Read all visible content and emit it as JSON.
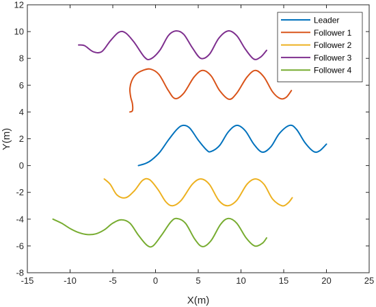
{
  "chart_data": {
    "type": "line",
    "title": "",
    "xlabel": "X(m)",
    "ylabel": "Y(m)",
    "xlim": [
      -15,
      25
    ],
    "ylim": [
      -8,
      12
    ],
    "xticks": [
      -15,
      -10,
      -5,
      0,
      5,
      10,
      15,
      20,
      25
    ],
    "yticks": [
      -8,
      -6,
      -4,
      -2,
      0,
      2,
      4,
      6,
      8,
      10,
      12
    ],
    "grid": false,
    "legend_position": "top-right",
    "series": [
      {
        "name": "Leader",
        "color": "#0072BD",
        "points": [
          [
            -2,
            0
          ],
          [
            -1.2,
            0.15
          ],
          [
            -0.5,
            0.4
          ],
          [
            0.5,
            1.0
          ],
          [
            1.5,
            1.9
          ],
          [
            2.5,
            2.7
          ],
          [
            3.2,
            3.0
          ],
          [
            4.0,
            2.8
          ],
          [
            5.0,
            1.9
          ],
          [
            6.0,
            1.15
          ],
          [
            6.5,
            1.05
          ],
          [
            7.5,
            1.5
          ],
          [
            8.5,
            2.5
          ],
          [
            9.5,
            3.0
          ],
          [
            10.5,
            2.6
          ],
          [
            11.5,
            1.6
          ],
          [
            12.5,
            1.0
          ],
          [
            13.5,
            1.4
          ],
          [
            14.5,
            2.4
          ],
          [
            15.7,
            3.0
          ],
          [
            16.5,
            2.7
          ],
          [
            17.5,
            1.7
          ],
          [
            18.5,
            1.05
          ],
          [
            19.2,
            1.1
          ],
          [
            20.0,
            1.6
          ]
        ]
      },
      {
        "name": "Follower 1",
        "color": "#D95319",
        "points": [
          [
            -3.0,
            4.0
          ],
          [
            -2.7,
            4.1
          ],
          [
            -2.7,
            4.6
          ],
          [
            -2.9,
            5.1
          ],
          [
            -3.0,
            5.7
          ],
          [
            -2.8,
            6.3
          ],
          [
            -2.3,
            6.8
          ],
          [
            -1.5,
            7.1
          ],
          [
            -0.6,
            7.2
          ],
          [
            0.4,
            6.8
          ],
          [
            1.5,
            5.6
          ],
          [
            2.3,
            5.0
          ],
          [
            3.3,
            5.4
          ],
          [
            4.5,
            6.6
          ],
          [
            5.5,
            7.1
          ],
          [
            6.5,
            6.7
          ],
          [
            7.5,
            5.6
          ],
          [
            8.6,
            4.95
          ],
          [
            9.5,
            5.4
          ],
          [
            10.7,
            6.6
          ],
          [
            11.7,
            7.1
          ],
          [
            12.7,
            6.6
          ],
          [
            13.7,
            5.5
          ],
          [
            14.6,
            5.0
          ],
          [
            15.3,
            5.1
          ],
          [
            15.9,
            5.6
          ]
        ]
      },
      {
        "name": "Follower 2",
        "color": "#EDB120",
        "points": [
          [
            -6.0,
            -1.0
          ],
          [
            -5.3,
            -1.4
          ],
          [
            -4.5,
            -2.2
          ],
          [
            -3.5,
            -2.4
          ],
          [
            -2.5,
            -1.9
          ],
          [
            -1.5,
            -1.1
          ],
          [
            -0.7,
            -1.05
          ],
          [
            0.3,
            -1.8
          ],
          [
            1.2,
            -2.7
          ],
          [
            2.0,
            -3.0
          ],
          [
            3.0,
            -2.6
          ],
          [
            4.3,
            -1.4
          ],
          [
            5.3,
            -1.0
          ],
          [
            6.3,
            -1.4
          ],
          [
            7.4,
            -2.6
          ],
          [
            8.4,
            -3.0
          ],
          [
            9.5,
            -2.6
          ],
          [
            10.7,
            -1.4
          ],
          [
            11.7,
            -1.0
          ],
          [
            12.7,
            -1.4
          ],
          [
            13.7,
            -2.5
          ],
          [
            14.8,
            -3.0
          ],
          [
            15.5,
            -2.8
          ],
          [
            16.0,
            -2.4
          ]
        ]
      },
      {
        "name": "Follower 3",
        "color": "#7E2F8E",
        "points": [
          [
            -9.0,
            9.0
          ],
          [
            -8.3,
            8.95
          ],
          [
            -7.3,
            8.5
          ],
          [
            -6.3,
            8.5
          ],
          [
            -5.3,
            9.3
          ],
          [
            -4.3,
            9.95
          ],
          [
            -3.5,
            9.9
          ],
          [
            -2.5,
            9.2
          ],
          [
            -1.3,
            8.1
          ],
          [
            -0.6,
            7.95
          ],
          [
            0.5,
            8.6
          ],
          [
            1.5,
            9.7
          ],
          [
            2.4,
            10.05
          ],
          [
            3.3,
            9.8
          ],
          [
            4.3,
            8.8
          ],
          [
            5.3,
            8.0
          ],
          [
            6.3,
            8.3
          ],
          [
            7.4,
            9.5
          ],
          [
            8.5,
            10.05
          ],
          [
            9.5,
            9.7
          ],
          [
            10.5,
            8.7
          ],
          [
            11.5,
            7.95
          ],
          [
            12.3,
            8.1
          ],
          [
            13.0,
            8.6
          ]
        ]
      },
      {
        "name": "Follower 4",
        "color": "#77AC30",
        "points": [
          [
            -12.0,
            -4.0
          ],
          [
            -11.0,
            -4.3
          ],
          [
            -10.0,
            -4.7
          ],
          [
            -9.0,
            -5.0
          ],
          [
            -8.0,
            -5.15
          ],
          [
            -7.0,
            -5.1
          ],
          [
            -6.0,
            -4.8
          ],
          [
            -5.0,
            -4.3
          ],
          [
            -4.0,
            -4.05
          ],
          [
            -3.0,
            -4.3
          ],
          [
            -2.0,
            -5.2
          ],
          [
            -1.0,
            -5.95
          ],
          [
            -0.3,
            -6.0
          ],
          [
            0.7,
            -5.2
          ],
          [
            1.8,
            -4.2
          ],
          [
            2.5,
            -3.95
          ],
          [
            3.5,
            -4.3
          ],
          [
            4.6,
            -5.5
          ],
          [
            5.5,
            -6.05
          ],
          [
            6.5,
            -5.6
          ],
          [
            7.6,
            -4.4
          ],
          [
            8.5,
            -3.95
          ],
          [
            9.5,
            -4.3
          ],
          [
            10.6,
            -5.4
          ],
          [
            11.6,
            -6.0
          ],
          [
            12.5,
            -5.8
          ],
          [
            13.0,
            -5.4
          ]
        ]
      }
    ]
  }
}
